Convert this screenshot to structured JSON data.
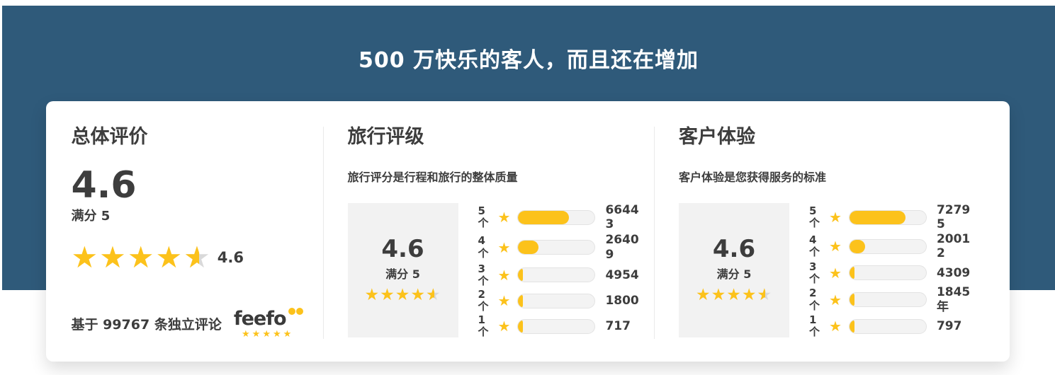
{
  "header": {
    "title": "500 万快乐的客人，而且还在增加"
  },
  "overall": {
    "title": "总体评价",
    "score": "4.6",
    "out_of_label": "满分 5",
    "stars_caption": "4.6",
    "full_stars": 4,
    "last_star_fill_percent": 55,
    "reviews_note": "基于 99767 条独立评论",
    "feefo": {
      "wordmark": "feefo",
      "stars": 5
    }
  },
  "sections": [
    {
      "id": "service-rating",
      "title": "旅行评级",
      "subtitle": "旅行评分是行程和旅行的整体质量",
      "score": "4.6",
      "out_of_label": "满分 5",
      "full_stars": 4,
      "last_star_fill_percent": 55,
      "rows": [
        {
          "stars": "5",
          "unit": "个",
          "count": "66443",
          "percent": 66
        },
        {
          "stars": "4",
          "unit": "个",
          "count": "26409",
          "percent": 26
        },
        {
          "stars": "3",
          "unit": "个",
          "count": "4954",
          "percent": 5
        },
        {
          "stars": "2",
          "unit": "个",
          "count": "1800",
          "percent": 2
        },
        {
          "stars": "1",
          "unit": "个",
          "count": "717",
          "percent": 1
        }
      ]
    },
    {
      "id": "customer-experience",
      "title": "客户体验",
      "subtitle": "客户体验是您获得服务的标准",
      "score": "4.6",
      "out_of_label": "满分 5",
      "full_stars": 4,
      "last_star_fill_percent": 55,
      "rows": [
        {
          "stars": "5",
          "unit": "个",
          "count": "72795",
          "percent": 73
        },
        {
          "stars": "4",
          "unit": "个",
          "count": "20012",
          "percent": 20
        },
        {
          "stars": "3",
          "unit": "个",
          "count": "4309",
          "percent": 4
        },
        {
          "stars": "2",
          "unit": "个",
          "count": "1845 年",
          "percent": 2
        },
        {
          "stars": "1",
          "unit": "个",
          "count": "797",
          "percent": 1
        }
      ]
    }
  ],
  "icons": {
    "star": "★",
    "feefo_eyes": "two-yellow-circles"
  },
  "colors": {
    "hero_background": "#2F5A7A",
    "accent_yellow": "#FCC21B",
    "text_dark": "#3D3D3D",
    "empty_star_gray": "#D9D9D9"
  }
}
